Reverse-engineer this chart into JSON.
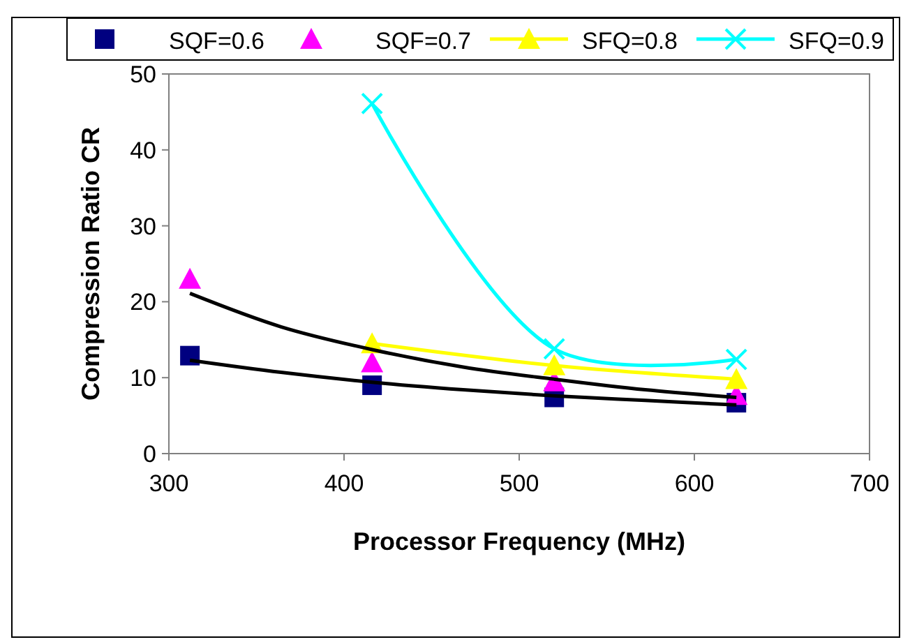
{
  "chart_data": {
    "type": "line",
    "xlabel": "Processor Frequency (MHz)",
    "ylabel": "Compression Ratio CR",
    "xlim": [
      300,
      700
    ],
    "xticks": [
      300,
      400,
      500,
      600,
      700
    ],
    "ylim": [
      0,
      50
    ],
    "yticks": [
      0,
      10,
      20,
      30,
      40,
      50
    ],
    "grid": false,
    "legend": "top",
    "series": [
      {
        "name": "SQF=0.6",
        "type": "scatter",
        "marker": "square",
        "color": "#000080",
        "x": [
          312,
          416,
          520,
          624
        ],
        "values": [
          12.9,
          9.0,
          7.4,
          6.7
        ]
      },
      {
        "name": "SQF=0.7",
        "type": "scatter",
        "marker": "triangle",
        "color": "#ff00ff",
        "x": [
          312,
          416,
          520,
          624
        ],
        "values": [
          23,
          12,
          9.5,
          7.7
        ]
      },
      {
        "name": "SFQ=0.8",
        "marker": "triangle",
        "color": "#ffff00",
        "x": [
          416,
          520,
          624
        ],
        "values": [
          14.5,
          11.6,
          9.8
        ]
      },
      {
        "name": "SFQ=0.9",
        "marker": "cross",
        "color": "#00ffff",
        "x": [
          416,
          520,
          624
        ],
        "values": [
          46.1,
          13.8,
          12.4
        ]
      },
      {
        "marker": "none",
        "color": "#000000",
        "x": [
          312,
          364,
          416,
          468,
          520,
          572,
          624
        ],
        "values": [
          12.3,
          10.7,
          9.4,
          8.4,
          7.6,
          7.0,
          6.4
        ]
      },
      {
        "marker": "none",
        "color": "#000000",
        "x": [
          312,
          364,
          416,
          468,
          520,
          572,
          624
        ],
        "values": [
          21.1,
          16.7,
          13.7,
          11.4,
          9.8,
          8.4,
          7.4
        ]
      }
    ]
  }
}
